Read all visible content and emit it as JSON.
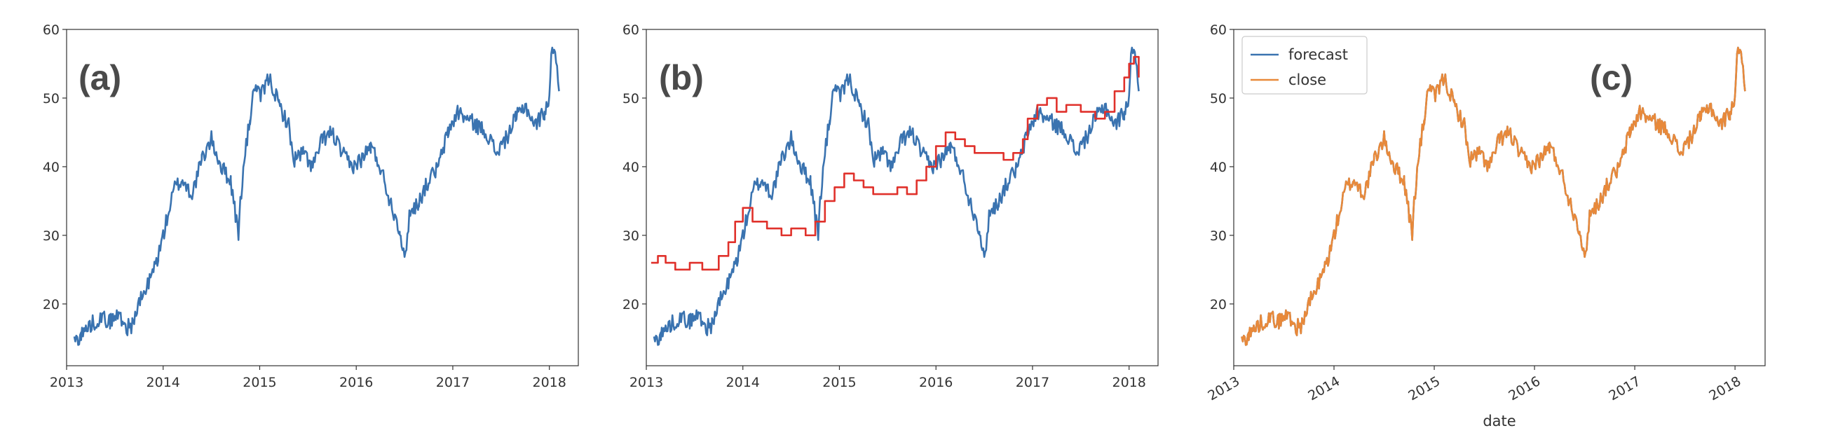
{
  "colors": {
    "blue": "#3a73b0",
    "red": "#e0312b",
    "orange": "#e8893a"
  },
  "chart_data": [
    {
      "type": "line",
      "panel_label": "(a)",
      "xlim": [
        2013.0,
        2018.3
      ],
      "ylim": [
        11,
        60
      ],
      "xticks": [
        2013,
        2014,
        2015,
        2016,
        2017,
        2018
      ],
      "xticklabels": [
        "2013",
        "2014",
        "2015",
        "2016",
        "2017",
        "2018"
      ],
      "yticks": [
        20,
        30,
        40,
        50,
        60
      ],
      "yticklabels": [
        "20",
        "30",
        "40",
        "50",
        "60"
      ],
      "grid": false,
      "xlabel": "",
      "ylabel": "",
      "series": [
        {
          "color": "#3a73b0",
          "step": false,
          "volatility": 1.2,
          "x": [
            2013.08,
            2013.15,
            2013.25,
            2013.35,
            2013.45,
            2013.55,
            2013.62,
            2013.68,
            2013.75,
            2013.85,
            2013.95,
            2014.05,
            2014.12,
            2014.2,
            2014.3,
            2014.4,
            2014.5,
            2014.55,
            2014.6,
            2014.7,
            2014.78,
            2014.8,
            2014.85,
            2014.9,
            2014.95,
            2015.0,
            2015.1,
            2015.2,
            2015.3,
            2015.35,
            2015.45,
            2015.55,
            2015.65,
            2015.75,
            2015.85,
            2015.95,
            2016.05,
            2016.15,
            2016.25,
            2016.35,
            2016.45,
            2016.5,
            2016.55,
            2016.65,
            2016.75,
            2016.85,
            2016.95,
            2017.05,
            2017.15,
            2017.25,
            2017.35,
            2017.45,
            2017.55,
            2017.65,
            2017.75,
            2017.85,
            2017.95,
            2018.0,
            2018.03,
            2018.06,
            2018.1
          ],
          "y": [
            14.5,
            15.5,
            17,
            18,
            17.5,
            18.5,
            16.5,
            17,
            20,
            23,
            27,
            33,
            37,
            38,
            36,
            41,
            44,
            42,
            40,
            38,
            30,
            35,
            42,
            47,
            52,
            50,
            53,
            49,
            46,
            41,
            42,
            40,
            44,
            45,
            42,
            40,
            41,
            43,
            40,
            35,
            31,
            26,
            33,
            35,
            38,
            40,
            45,
            48,
            47,
            46,
            45,
            42,
            44,
            47,
            49,
            46,
            48,
            50,
            58,
            57,
            51
          ]
        }
      ]
    },
    {
      "type": "line",
      "panel_label": "(b)",
      "xlim": [
        2013.0,
        2018.3
      ],
      "ylim": [
        11,
        60
      ],
      "xticks": [
        2013,
        2014,
        2015,
        2016,
        2017,
        2018
      ],
      "xticklabels": [
        "2013",
        "2014",
        "2015",
        "2016",
        "2017",
        "2018"
      ],
      "yticks": [
        20,
        30,
        40,
        50,
        60
      ],
      "yticklabels": [
        "20",
        "30",
        "40",
        "50",
        "60"
      ],
      "grid": false,
      "xlabel": "",
      "ylabel": "",
      "series": [
        {
          "color": "#3a73b0",
          "step": false,
          "volatility": 1.2,
          "x": [
            2013.08,
            2013.15,
            2013.25,
            2013.35,
            2013.45,
            2013.55,
            2013.62,
            2013.68,
            2013.75,
            2013.85,
            2013.95,
            2014.05,
            2014.12,
            2014.2,
            2014.3,
            2014.4,
            2014.5,
            2014.55,
            2014.6,
            2014.7,
            2014.78,
            2014.8,
            2014.85,
            2014.9,
            2014.95,
            2015.0,
            2015.1,
            2015.2,
            2015.3,
            2015.35,
            2015.45,
            2015.55,
            2015.65,
            2015.75,
            2015.85,
            2015.95,
            2016.05,
            2016.15,
            2016.25,
            2016.35,
            2016.45,
            2016.5,
            2016.55,
            2016.65,
            2016.75,
            2016.85,
            2016.95,
            2017.05,
            2017.15,
            2017.25,
            2017.35,
            2017.45,
            2017.55,
            2017.65,
            2017.75,
            2017.85,
            2017.95,
            2018.0,
            2018.03,
            2018.06,
            2018.1
          ],
          "y": [
            14.5,
            15.5,
            17,
            18,
            17.5,
            18.5,
            16.5,
            17,
            20,
            23,
            27,
            33,
            37,
            38,
            36,
            41,
            44,
            42,
            40,
            38,
            30,
            35,
            42,
            47,
            52,
            50,
            53,
            49,
            46,
            41,
            42,
            40,
            44,
            45,
            42,
            40,
            41,
            43,
            40,
            35,
            31,
            26,
            33,
            35,
            38,
            40,
            45,
            48,
            47,
            46,
            45,
            42,
            44,
            47,
            49,
            46,
            48,
            50,
            58,
            57,
            51
          ]
        },
        {
          "color": "#e0312b",
          "step": true,
          "volatility": 0,
          "x": [
            2013.05,
            2013.12,
            2013.2,
            2013.3,
            2013.45,
            2013.58,
            2013.75,
            2013.85,
            2013.92,
            2014.0,
            2014.1,
            2014.25,
            2014.4,
            2014.5,
            2014.65,
            2014.75,
            2014.85,
            2014.95,
            2015.05,
            2015.15,
            2015.25,
            2015.35,
            2015.5,
            2015.6,
            2015.7,
            2015.8,
            2015.9,
            2016.0,
            2016.1,
            2016.2,
            2016.3,
            2016.4,
            2016.55,
            2016.7,
            2016.8,
            2016.9,
            2016.95,
            2017.05,
            2017.15,
            2017.25,
            2017.35,
            2017.5,
            2017.65,
            2017.75,
            2017.85,
            2017.95,
            2018.0,
            2018.05,
            2018.1
          ],
          "y": [
            26,
            27,
            26,
            25,
            26,
            25,
            27,
            29,
            32,
            34,
            32,
            31,
            30,
            31,
            30,
            32,
            35,
            37,
            39,
            38,
            37,
            36,
            36,
            37,
            36,
            38,
            40,
            43,
            45,
            44,
            43,
            42,
            42,
            41,
            42,
            44,
            47,
            49,
            50,
            48,
            49,
            48,
            47,
            48,
            51,
            53,
            55,
            56,
            53
          ]
        }
      ]
    },
    {
      "type": "line",
      "panel_label": "(c)",
      "xlim": [
        2013.0,
        2018.3
      ],
      "ylim": [
        11,
        60
      ],
      "xticks": [
        2013,
        2014,
        2015,
        2016,
        2017,
        2018
      ],
      "xticklabels": [
        "2013",
        "2014",
        "2015",
        "2016",
        "2017",
        "2018"
      ],
      "yticks": [
        20,
        30,
        40,
        50,
        60
      ],
      "yticklabels": [
        "20",
        "30",
        "40",
        "50",
        "60"
      ],
      "grid": false,
      "xlabel": "date",
      "ylabel": "",
      "legend_position": "top-left",
      "legend": [
        {
          "name": "forecast",
          "color": "#3a73b0"
        },
        {
          "name": "close",
          "color": "#e8893a"
        }
      ],
      "series": [
        {
          "name": "forecast",
          "color": "#3a73b0",
          "step": false,
          "volatility": 1.2,
          "x": [
            2013.08,
            2013.15,
            2013.25,
            2013.35,
            2013.45,
            2013.55,
            2013.62,
            2013.68,
            2013.75,
            2013.85,
            2013.95,
            2014.05,
            2014.12,
            2014.2,
            2014.3,
            2014.4,
            2014.5,
            2014.55,
            2014.6,
            2014.7,
            2014.78,
            2014.8,
            2014.85,
            2014.9,
            2014.95,
            2015.0,
            2015.1,
            2015.2,
            2015.3,
            2015.35,
            2015.45,
            2015.55,
            2015.65,
            2015.75,
            2015.85,
            2015.95,
            2016.05,
            2016.15,
            2016.25,
            2016.35,
            2016.45,
            2016.5,
            2016.55,
            2016.65,
            2016.75,
            2016.85,
            2016.95,
            2017.05,
            2017.15,
            2017.25,
            2017.35,
            2017.45,
            2017.55,
            2017.65,
            2017.75,
            2017.85,
            2017.95,
            2018.0,
            2018.03,
            2018.06,
            2018.1
          ],
          "y": [
            14.5,
            15.5,
            17,
            18,
            17.5,
            18.5,
            16.5,
            17,
            20,
            23,
            27,
            33,
            37,
            38,
            36,
            41,
            44,
            42,
            40,
            38,
            30,
            35,
            42,
            47,
            52,
            50,
            53,
            49,
            46,
            41,
            42,
            40,
            44,
            45,
            42,
            40,
            41,
            43,
            40,
            35,
            31,
            26,
            33,
            35,
            38,
            40,
            45,
            48,
            47,
            46,
            45,
            42,
            44,
            47,
            49,
            46,
            48,
            50,
            58,
            57,
            51
          ]
        },
        {
          "name": "close",
          "color": "#e8893a",
          "step": false,
          "volatility": 1.2,
          "x": [
            2013.08,
            2013.15,
            2013.25,
            2013.35,
            2013.45,
            2013.55,
            2013.62,
            2013.68,
            2013.75,
            2013.85,
            2013.95,
            2014.05,
            2014.12,
            2014.2,
            2014.3,
            2014.4,
            2014.5,
            2014.55,
            2014.6,
            2014.7,
            2014.78,
            2014.8,
            2014.85,
            2014.9,
            2014.95,
            2015.0,
            2015.1,
            2015.2,
            2015.3,
            2015.35,
            2015.45,
            2015.55,
            2015.65,
            2015.75,
            2015.85,
            2015.95,
            2016.05,
            2016.15,
            2016.25,
            2016.35,
            2016.45,
            2016.5,
            2016.55,
            2016.65,
            2016.75,
            2016.85,
            2016.95,
            2017.05,
            2017.15,
            2017.25,
            2017.35,
            2017.45,
            2017.55,
            2017.65,
            2017.75,
            2017.85,
            2017.95,
            2018.0,
            2018.03,
            2018.06,
            2018.1
          ],
          "y": [
            14.5,
            15.5,
            17,
            18,
            17.5,
            18.5,
            16.5,
            17,
            20,
            23,
            27,
            33,
            37,
            38,
            36,
            41,
            44,
            42,
            40,
            38,
            30,
            35,
            42,
            47,
            52,
            50,
            53,
            49,
            46,
            41,
            42,
            40,
            44,
            45,
            42,
            40,
            41,
            43,
            40,
            35,
            31,
            26,
            33,
            35,
            38,
            40,
            45,
            48,
            47,
            46,
            45,
            42,
            44,
            47,
            49,
            46,
            48,
            50,
            58,
            57,
            51
          ]
        }
      ]
    }
  ]
}
